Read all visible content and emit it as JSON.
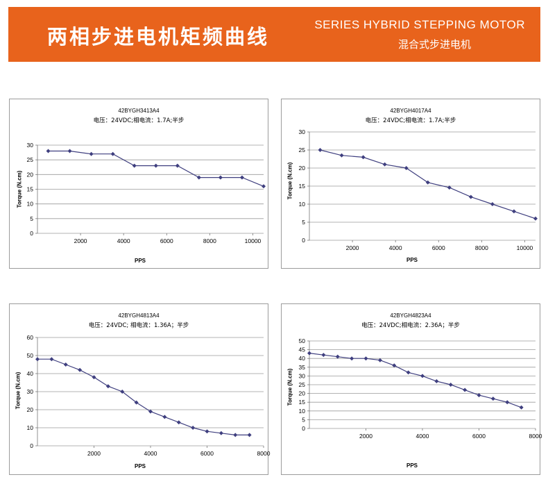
{
  "banner": {
    "title": "两相步进电机矩频曲线",
    "subtitle_en": "SERIES HYBRID STEPPING MOTOR",
    "subtitle_cn": "混合式步进电机",
    "color": "#e8631c"
  },
  "line_color": "#3f3f7f",
  "chart_data": [
    {
      "type": "line",
      "title": "42BYGH3413A4",
      "subtitle": "电压：24VDC;相电流：1.7A;半步",
      "xlabel": "PPS",
      "ylabel": "Torque (N.cm)",
      "xlim": [
        0,
        10500
      ],
      "ylim": [
        0,
        30
      ],
      "yticks": [
        0,
        5,
        10,
        15,
        20,
        25,
        30
      ],
      "xticks": [
        2000,
        4000,
        6000,
        8000,
        10000
      ],
      "grid": true,
      "series": [
        {
          "x": [
            500,
            1500,
            2500,
            3500,
            4500,
            5500,
            6500,
            7500,
            8500,
            9500,
            10500
          ],
          "y": [
            28,
            28,
            27,
            27,
            23,
            23,
            23,
            19,
            19,
            19,
            16
          ]
        }
      ]
    },
    {
      "type": "line",
      "title": "42BYGH4017A4",
      "subtitle": "电压：24VDC;相电流：1.7A;半步",
      "xlabel": "PPS",
      "ylabel": "Torque (N.cm)",
      "xlim": [
        0,
        10500
      ],
      "ylim": [
        0,
        30
      ],
      "yticks": [
        0,
        5,
        10,
        15,
        20,
        25,
        30
      ],
      "xticks": [
        2000,
        4000,
        6000,
        8000,
        10000
      ],
      "grid": true,
      "series": [
        {
          "x": [
            500,
            1500,
            2500,
            3500,
            4500,
            5500,
            6500,
            7500,
            8500,
            9500,
            10500
          ],
          "y": [
            25,
            23.5,
            23,
            21,
            20,
            16,
            14.6,
            12,
            10,
            8,
            6
          ]
        }
      ]
    },
    {
      "type": "line",
      "title": "42BYGH4813A4",
      "subtitle": "电压：24VDC; 相电流：1.36A；半步",
      "xlabel": "PPS",
      "ylabel": "Torque (N.cm)",
      "xlim": [
        0,
        8000
      ],
      "ylim": [
        0,
        60
      ],
      "yticks": [
        0,
        10,
        20,
        30,
        40,
        50,
        60
      ],
      "xticks": [
        2000,
        4000,
        6000,
        8000
      ],
      "grid": true,
      "series": [
        {
          "x": [
            0,
            500,
            1000,
            1500,
            2000,
            2500,
            3000,
            3500,
            4000,
            4500,
            5000,
            5500,
            6000,
            6500,
            7000,
            7500
          ],
          "y": [
            48,
            48,
            45,
            42,
            38,
            33,
            30,
            24,
            19,
            16,
            13,
            10,
            8,
            7,
            6,
            6
          ]
        }
      ]
    },
    {
      "type": "line",
      "title": "42BYGH4823A4",
      "subtitle": "电压：24VDC;相电流：2.36A；半步",
      "xlabel": "PPS",
      "ylabel": "Torque (N.cm)",
      "xlim": [
        0,
        8000
      ],
      "ylim": [
        0,
        50
      ],
      "yticks": [
        0,
        5,
        10,
        15,
        20,
        25,
        30,
        35,
        40,
        45,
        50
      ],
      "xticks": [
        2000,
        4000,
        6000,
        8000
      ],
      "grid": true,
      "series": [
        {
          "x": [
            0,
            500,
            1000,
            1500,
            2000,
            2500,
            3000,
            3500,
            4000,
            4500,
            5000,
            5500,
            6000,
            6500,
            7000,
            7500
          ],
          "y": [
            43,
            42,
            41,
            40,
            40,
            39,
            36,
            32,
            30,
            27,
            25,
            22,
            19,
            17,
            15,
            12
          ]
        }
      ]
    }
  ]
}
